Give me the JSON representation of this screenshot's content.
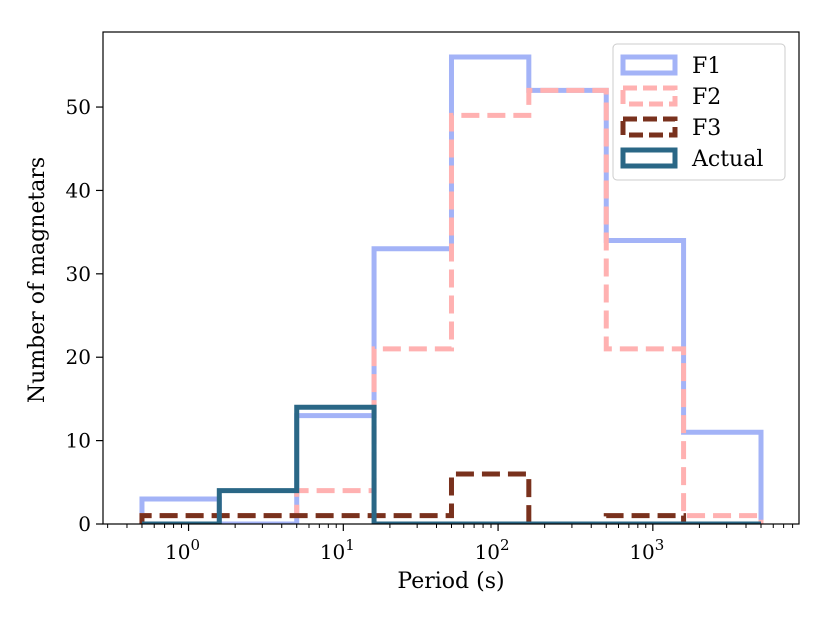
{
  "chart_data": {
    "type": "histogram",
    "title": "",
    "xlabel": "Period (s)",
    "ylabel": "Number of magnetars",
    "xscale": "log",
    "xlim": [
      0.28,
      8800
    ],
    "ylim": [
      0,
      59
    ],
    "bin_edges": [
      0.5,
      1.58,
      5,
      15.8,
      50,
      158,
      500,
      1580,
      5000
    ],
    "x_ticks": [
      {
        "value": 1,
        "base": "10",
        "exp": "0"
      },
      {
        "value": 10,
        "base": "10",
        "exp": "1"
      },
      {
        "value": 100,
        "base": "10",
        "exp": "2"
      },
      {
        "value": 1000,
        "base": "10",
        "exp": "3"
      }
    ],
    "y_ticks": [
      0,
      10,
      20,
      30,
      40,
      50
    ],
    "legend_position": "top-right",
    "series": [
      {
        "name": "F1",
        "color": "#a3b3f7",
        "style": "solid",
        "counts": [
          3,
          0,
          13,
          33,
          56,
          52,
          34,
          11
        ]
      },
      {
        "name": "F2",
        "color": "#ffb1b1",
        "style": "dashed",
        "counts": [
          1,
          1,
          4,
          21,
          49,
          52,
          21,
          1
        ]
      },
      {
        "name": "F3",
        "color": "#79311d",
        "style": "dashed",
        "counts": [
          1,
          1,
          1,
          1,
          6,
          0,
          1,
          0
        ]
      },
      {
        "name": "Actual",
        "color": "#2a6786",
        "style": "solid",
        "counts": [
          0,
          4,
          14,
          0,
          0,
          0,
          0,
          0
        ]
      }
    ]
  }
}
